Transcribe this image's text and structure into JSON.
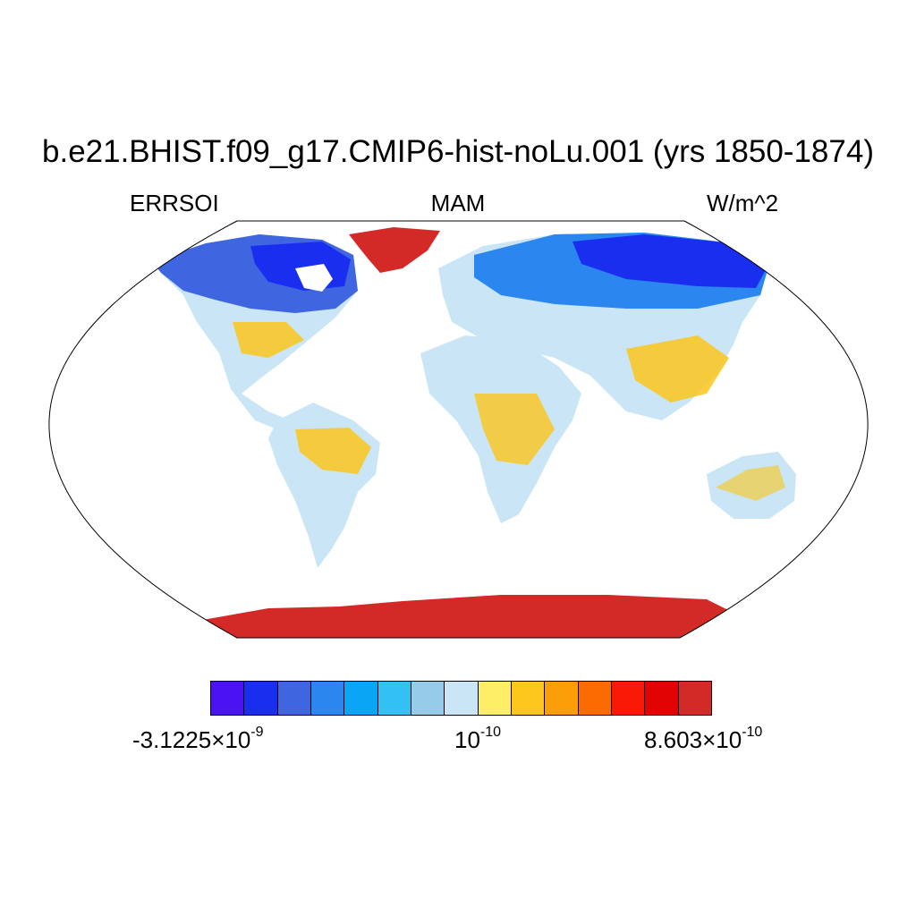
{
  "title": "b.e21.BHIST.f09_g17.CMIP6-hist-noLu.001 (yrs 1850-1874)",
  "left_label": "ERRSOI",
  "center_label": "MAM",
  "right_label": "W/m^2",
  "colorbar": {
    "colors": [
      "#4b12f2",
      "#1a2ef0",
      "#3f66e0",
      "#2b86f0",
      "#0aa6f5",
      "#33c0f5",
      "#96cbe9",
      "#cae6f6",
      "#fded67",
      "#fcc61c",
      "#fb9d06",
      "#fc6a02",
      "#f91906",
      "#e10202",
      "#d42a27"
    ],
    "min_mantissa": "-3.1225",
    "min_exp": "-9",
    "mid_base": "10",
    "mid_exp": "-10",
    "max_mantissa": "8.603",
    "max_exp": "-10",
    "times": "×"
  }
}
